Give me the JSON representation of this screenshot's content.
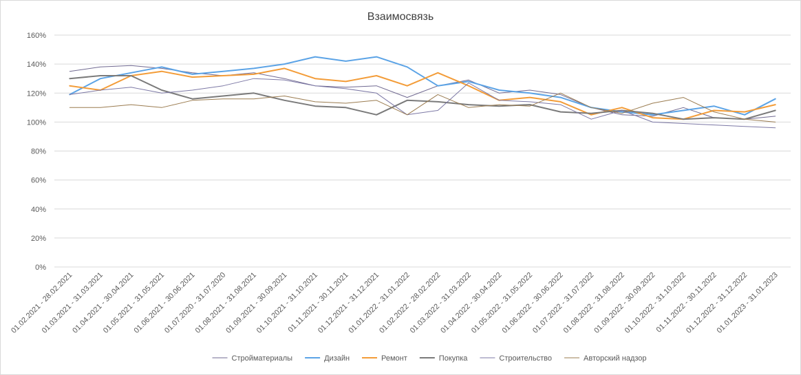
{
  "chart_data": {
    "type": "line",
    "title": "Взаимосвязь",
    "xlabel": "",
    "ylabel": "",
    "ylim": [
      0,
      1.6
    ],
    "yticks": [
      0,
      0.2,
      0.4,
      0.6,
      0.8,
      1.0,
      1.2,
      1.4,
      1.6
    ],
    "ytick_labels": [
      "0%",
      "20%",
      "40%",
      "60%",
      "80%",
      "100%",
      "120%",
      "140%",
      "160%"
    ],
    "grid": true,
    "legend_position": "bottom",
    "categories": [
      "01.02.2021 - 28.02.2021",
      "01.03.2021 - 31.03.2021",
      "01.04.2021 - 30.04.2021",
      "01.05.2021 - 31.05.2021",
      "01.06.2021 - 30.06.2021",
      "01.07.2020 - 31.07.2020",
      "01.08.2021 - 31.08.2021",
      "01.09.2021 - 30.09.2021",
      "01.10.2021 - 31.10.2021",
      "01.11.2021 - 30.11.2021",
      "01.12.2021 - 31.12.2021",
      "01.01.2022 - 31.01.2022",
      "01.02.2022 - 28.02.2022",
      "01.03.2022 - 31.03.2022",
      "01.04.2022 - 30.04.2022",
      "01.05.2022 - 31.05.2022",
      "01.06.2022 - 30.06.2022",
      "01.07.2022 - 31.07.2022",
      "01.08.2022 - 31.08.2022",
      "01.09.2022 - 30.09.2022",
      "01.10.2022 - 31.10.2022",
      "01.11.2022 - 30.11.2022",
      "01.12.2022 - 31.12.2022",
      "01.01.2023 - 31.01.2023"
    ],
    "series": [
      {
        "name": "Стройматериалы",
        "color": "#6f6890",
        "width": 1,
        "values": [
          1.35,
          1.38,
          1.39,
          1.37,
          1.34,
          1.32,
          1.34,
          1.3,
          1.25,
          1.24,
          1.25,
          1.17,
          1.25,
          1.29,
          1.2,
          1.22,
          1.19,
          1.1,
          1.05,
          1.04,
          1.1,
          1.03,
          1.02,
          1.04
        ]
      },
      {
        "name": "Дизайн",
        "color": "#5ba3e6",
        "width": 2,
        "values": [
          1.19,
          1.3,
          1.34,
          1.38,
          1.33,
          1.35,
          1.37,
          1.4,
          1.45,
          1.42,
          1.45,
          1.38,
          1.25,
          1.28,
          1.22,
          1.2,
          1.17,
          1.1,
          1.07,
          1.05,
          1.08,
          1.11,
          1.05,
          1.16
        ]
      },
      {
        "name": "Ремонт",
        "color": "#f39c38",
        "width": 2,
        "values": [
          1.25,
          1.22,
          1.32,
          1.35,
          1.31,
          1.32,
          1.33,
          1.37,
          1.3,
          1.28,
          1.32,
          1.25,
          1.34,
          1.25,
          1.15,
          1.17,
          1.14,
          1.05,
          1.1,
          1.03,
          1.02,
          1.08,
          1.07,
          1.12
        ]
      },
      {
        "name": "Покупка",
        "color": "#7a7a7a",
        "width": 2,
        "values": [
          1.3,
          1.32,
          1.32,
          1.22,
          1.16,
          1.18,
          1.2,
          1.15,
          1.11,
          1.1,
          1.05,
          1.15,
          1.14,
          1.12,
          1.11,
          1.12,
          1.07,
          1.06,
          1.08,
          1.06,
          1.02,
          1.03,
          1.02,
          1.08
        ]
      },
      {
        "name": "Строительство",
        "color": "#7b77a4",
        "width": 1,
        "values": [
          1.19,
          1.22,
          1.24,
          1.2,
          1.22,
          1.25,
          1.3,
          1.29,
          1.25,
          1.23,
          1.2,
          1.05,
          1.08,
          1.27,
          1.15,
          1.14,
          1.12,
          1.02,
          1.08,
          1.0,
          0.99,
          0.98,
          0.97,
          0.96
        ]
      },
      {
        "name": "Авторский надзор",
        "color": "#9a7b4f",
        "width": 1,
        "values": [
          1.1,
          1.1,
          1.12,
          1.1,
          1.15,
          1.16,
          1.16,
          1.18,
          1.14,
          1.13,
          1.15,
          1.05,
          1.19,
          1.1,
          1.12,
          1.11,
          1.2,
          1.1,
          1.06,
          1.13,
          1.17,
          1.07,
          1.02,
          1.0
        ]
      }
    ]
  }
}
